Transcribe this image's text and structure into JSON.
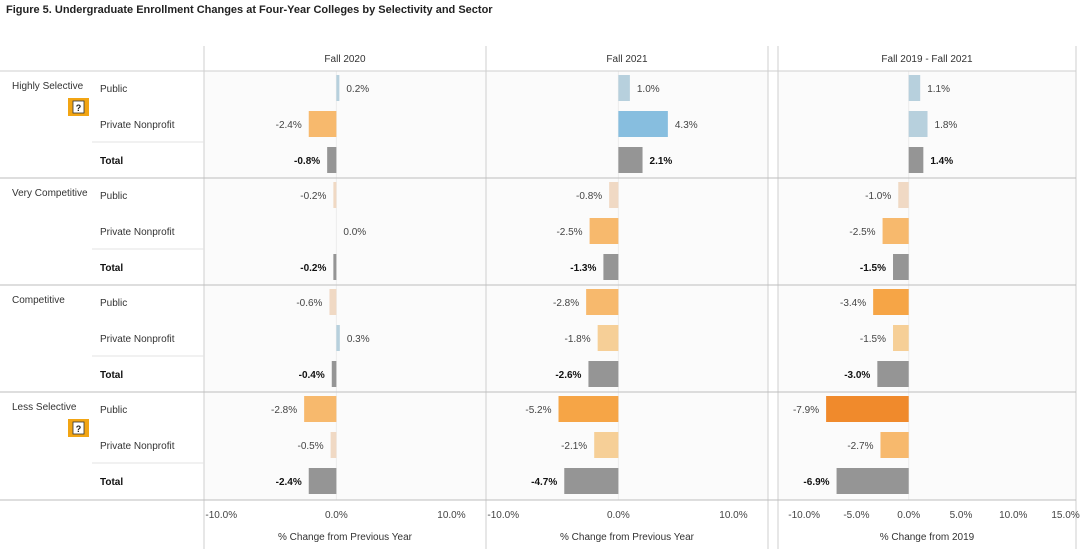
{
  "title": "Figure 5. Undergraduate Enrollment Changes at Four-Year Colleges by Selectivity and Sector",
  "colors": {
    "blue_light": "#b7d0dd",
    "blue_mid": "#87bedf",
    "orange_pale": "#f0d9c4",
    "orange_light": "#f6cf97",
    "orange_mid": "#f7b96d",
    "orange_strong": "#f6a546",
    "orange_deep": "#f08a2c",
    "gray": "#959595",
    "badge": "#f2a514",
    "grid": "#d9d9d9"
  },
  "chart_data": {
    "type": "bar",
    "orientation": "horizontal",
    "groups": [
      {
        "name": "Highly Selective",
        "has_info_badge": true,
        "badge_text": "?"
      },
      {
        "name": "Very Competitive",
        "has_info_badge": false
      },
      {
        "name": "Competitive",
        "has_info_badge": false
      },
      {
        "name": "Less Selective",
        "has_info_badge": true,
        "badge_text": "?"
      }
    ],
    "rows": [
      "Public",
      "Private Nonprofit",
      "Total"
    ],
    "panels": [
      {
        "title": "Fall 2020",
        "x_title": "% Change from Previous Year",
        "xlim": [
          -11.5,
          13
        ],
        "ticks": [
          -10,
          0,
          10
        ],
        "tick_labels": [
          "-10.0%",
          "0.0%",
          "10.0%"
        ],
        "values": [
          [
            0.2,
            -2.4,
            -0.8
          ],
          [
            -0.2,
            0.0,
            -0.2
          ],
          [
            -0.6,
            0.3,
            -0.4
          ],
          [
            -2.8,
            -0.5,
            -2.4
          ]
        ],
        "labels": [
          [
            "0.2%",
            "-2.4%",
            "-0.8%"
          ],
          [
            "-0.2%",
            "0.0%",
            "-0.2%"
          ],
          [
            "-0.6%",
            "0.3%",
            "-0.4%"
          ],
          [
            "-2.8%",
            "-0.5%",
            "-2.4%"
          ]
        ]
      },
      {
        "title": "Fall 2021",
        "x_title": "% Change from Previous Year",
        "xlim": [
          -11.5,
          13
        ],
        "ticks": [
          -10,
          0,
          10
        ],
        "tick_labels": [
          "-10.0%",
          "0.0%",
          "10.0%"
        ],
        "values": [
          [
            1.0,
            4.3,
            2.1
          ],
          [
            -0.8,
            -2.5,
            -1.3
          ],
          [
            -2.8,
            -1.8,
            -2.6
          ],
          [
            -5.2,
            -2.1,
            -4.7
          ]
        ],
        "labels": [
          [
            "1.0%",
            "4.3%",
            "2.1%"
          ],
          [
            "-0.8%",
            "-2.5%",
            "-1.3%"
          ],
          [
            "-2.8%",
            "-1.8%",
            "-2.6%"
          ],
          [
            "-5.2%",
            "-2.1%",
            "-4.7%"
          ]
        ]
      },
      {
        "title": "Fall 2019 - Fall 2021",
        "x_title": "% Change from 2019",
        "xlim": [
          -12.5,
          16
        ],
        "ticks": [
          -10,
          -5,
          0,
          5,
          10,
          15
        ],
        "tick_labels": [
          "-10.0%",
          "-5.0%",
          "0.0%",
          "5.0%",
          "10.0%",
          "15.0%"
        ],
        "values": [
          [
            1.1,
            1.8,
            1.4
          ],
          [
            -1.0,
            -2.5,
            -1.5
          ],
          [
            -3.4,
            -1.5,
            -3.0
          ],
          [
            -7.9,
            -2.7,
            -6.9
          ]
        ],
        "labels": [
          [
            "1.1%",
            "1.8%",
            "1.4%"
          ],
          [
            "-1.0%",
            "-2.5%",
            "-1.5%"
          ],
          [
            "-3.4%",
            "-1.5%",
            "-3.0%"
          ],
          [
            "-7.9%",
            "-2.7%",
            "-6.9%"
          ]
        ]
      }
    ]
  }
}
